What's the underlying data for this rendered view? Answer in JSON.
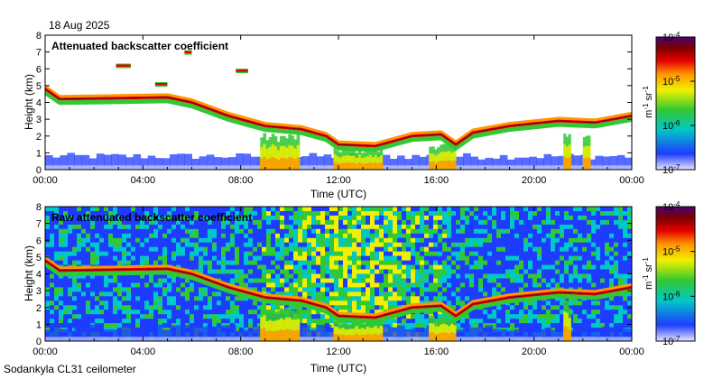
{
  "header": {
    "date": "18 Aug 2025"
  },
  "footer": {
    "instrument": "Sodankyla CL31 ceilometer"
  },
  "colors": {
    "background": "#ffffff",
    "low": "#e6e6ff",
    "blue": "#1e3cff",
    "cyan": "#00c8c8",
    "green": "#32c832",
    "yellow": "#f0f000",
    "orange": "#ff9600",
    "red": "#e60000",
    "darkred": "#780000",
    "purple": "#500078"
  },
  "chart_data": [
    {
      "type": "heatmap",
      "title": "Attenuated backscatter coefficient",
      "xlabel": "Time (UTC)",
      "ylabel": "Height (km)",
      "xticks": [
        "00:00",
        "04:00",
        "08:00",
        "12:00",
        "16:00",
        "20:00",
        "00:00"
      ],
      "xlim_hours": [
        0,
        24
      ],
      "yticks": [
        "0",
        "1",
        "2",
        "3",
        "4",
        "5",
        "6",
        "7",
        "8"
      ],
      "ylim": [
        0,
        8
      ],
      "colorbar": {
        "scale": "log",
        "ticks": [
          {
            "base": "10",
            "exp": "-7"
          },
          {
            "base": "10",
            "exp": "-6"
          },
          {
            "base": "10",
            "exp": "-5"
          },
          {
            "base": "10",
            "exp": "-4"
          }
        ],
        "unit": {
          "m": "m",
          "m_exp": "-1",
          "sr": "sr",
          "sr_exp": "-1"
        }
      },
      "features": {
        "cloud_layer_km": [
          {
            "t": 0.0,
            "h": 4.8
          },
          {
            "t": 0.6,
            "h": 4.2
          },
          {
            "t": 5.0,
            "h": 4.3
          },
          {
            "t": 6.0,
            "h": 4.0
          },
          {
            "t": 7.5,
            "h": 3.2
          },
          {
            "t": 9.0,
            "h": 2.6
          },
          {
            "t": 10.5,
            "h": 2.4
          },
          {
            "t": 11.5,
            "h": 2.0
          },
          {
            "t": 12.0,
            "h": 1.5
          },
          {
            "t": 13.5,
            "h": 1.4
          },
          {
            "t": 15.0,
            "h": 2.0
          },
          {
            "t": 16.2,
            "h": 2.1
          },
          {
            "t": 16.8,
            "h": 1.5
          },
          {
            "t": 17.5,
            "h": 2.2
          },
          {
            "t": 19.0,
            "h": 2.6
          },
          {
            "t": 21.0,
            "h": 2.9
          },
          {
            "t": 22.5,
            "h": 2.8
          },
          {
            "t": 24.0,
            "h": 3.2
          }
        ],
        "elevated_patches": [
          {
            "t0": 2.9,
            "t1": 3.5,
            "h": 6.2
          },
          {
            "t0": 4.5,
            "t1": 5.0,
            "h": 5.1
          },
          {
            "t0": 7.8,
            "t1": 8.3,
            "h": 5.9
          },
          {
            "t0": 5.7,
            "t1": 6.0,
            "h": 7.0
          }
        ],
        "precip_shafts": [
          {
            "t0": 8.8,
            "t1": 10.4,
            "top": 2.2
          },
          {
            "t0": 11.8,
            "t1": 13.8,
            "top": 1.3
          },
          {
            "t0": 15.7,
            "t1": 16.8,
            "top": 1.6
          },
          {
            "t0": 21.2,
            "t1": 21.5,
            "top": 2.6
          },
          {
            "t0": 22.0,
            "t1": 22.3,
            "top": 2.2
          }
        ],
        "boundary_layer_top_km": 1.0,
        "noise_background": false
      }
    },
    {
      "type": "heatmap",
      "title": "Raw attenuated backscatter coefficient",
      "xlabel": "Time (UTC)",
      "ylabel": "Height (km)",
      "xticks": [
        "00:00",
        "04:00",
        "08:00",
        "12:00",
        "16:00",
        "20:00",
        "00:00"
      ],
      "xlim_hours": [
        0,
        24
      ],
      "yticks": [
        "0",
        "1",
        "2",
        "3",
        "4",
        "5",
        "6",
        "7",
        "8"
      ],
      "ylim": [
        0,
        8
      ],
      "colorbar": {
        "scale": "log",
        "ticks": [
          {
            "base": "10",
            "exp": "-7"
          },
          {
            "base": "10",
            "exp": "-6"
          },
          {
            "base": "10",
            "exp": "-5"
          },
          {
            "base": "10",
            "exp": "-4"
          }
        ],
        "unit": {
          "m": "m",
          "m_exp": "-1",
          "sr": "sr",
          "sr_exp": "-1"
        }
      },
      "features": {
        "cloud_layer_km": [
          {
            "t": 0.0,
            "h": 4.8
          },
          {
            "t": 0.6,
            "h": 4.2
          },
          {
            "t": 5.0,
            "h": 4.3
          },
          {
            "t": 6.0,
            "h": 4.0
          },
          {
            "t": 7.5,
            "h": 3.2
          },
          {
            "t": 9.0,
            "h": 2.6
          },
          {
            "t": 10.5,
            "h": 2.4
          },
          {
            "t": 11.5,
            "h": 2.0
          },
          {
            "t": 12.0,
            "h": 1.5
          },
          {
            "t": 13.5,
            "h": 1.4
          },
          {
            "t": 15.0,
            "h": 2.0
          },
          {
            "t": 16.2,
            "h": 2.1
          },
          {
            "t": 16.8,
            "h": 1.5
          },
          {
            "t": 17.5,
            "h": 2.2
          },
          {
            "t": 19.0,
            "h": 2.6
          },
          {
            "t": 21.0,
            "h": 2.9
          },
          {
            "t": 22.5,
            "h": 2.8
          },
          {
            "t": 24.0,
            "h": 3.2
          }
        ],
        "elevated_patches": [],
        "precip_shafts": [
          {
            "t0": 8.8,
            "t1": 10.4,
            "top": 2.2
          },
          {
            "t0": 11.8,
            "t1": 13.8,
            "top": 1.3
          },
          {
            "t0": 15.7,
            "t1": 16.8,
            "top": 1.6
          },
          {
            "t0": 21.2,
            "t1": 21.5,
            "top": 2.6
          }
        ],
        "boundary_layer_top_km": 1.0,
        "noise_background": true
      }
    }
  ]
}
